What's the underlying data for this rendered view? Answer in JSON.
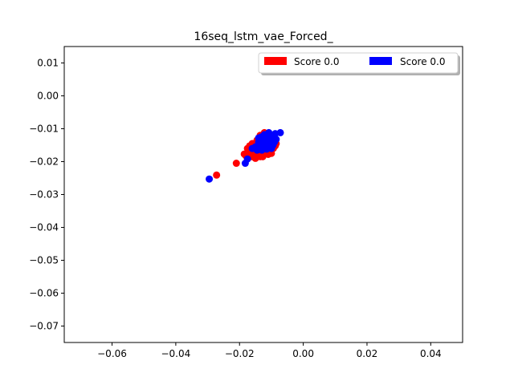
{
  "chart_data": {
    "type": "scatter",
    "title": "16seq_lstm_vae_Forced_",
    "xlabel": "",
    "ylabel": "",
    "xlim": [
      -0.075,
      0.05
    ],
    "ylim": [
      -0.075,
      0.015
    ],
    "xticks": [
      -0.06,
      -0.04,
      -0.02,
      0.0,
      0.02,
      0.04
    ],
    "xtick_labels": [
      "−0.06",
      "−0.04",
      "−0.02",
      "0.00",
      "0.02",
      "0.04"
    ],
    "yticks": [
      0.01,
      0.0,
      -0.01,
      -0.02,
      -0.03,
      -0.04,
      -0.05,
      -0.06,
      -0.07
    ],
    "ytick_labels": [
      "0.01",
      "0.00",
      "−0.01",
      "−0.02",
      "−0.03",
      "−0.04",
      "−0.05",
      "−0.06",
      "−0.07"
    ],
    "grid": false,
    "legend": {
      "placement": "top-right",
      "columns": 2
    },
    "series": [
      {
        "name": "Score 0.0",
        "color": "#ff0000",
        "points": [
          [
            -0.0272,
            -0.0241
          ],
          [
            -0.021,
            -0.0205
          ],
          [
            -0.0185,
            -0.0177
          ],
          [
            -0.018,
            -0.0182
          ],
          [
            -0.017,
            -0.0168
          ],
          [
            -0.0165,
            -0.0175
          ],
          [
            -0.016,
            -0.0185
          ],
          [
            -0.0155,
            -0.0178
          ],
          [
            -0.015,
            -0.017
          ],
          [
            -0.0148,
            -0.016
          ],
          [
            -0.0145,
            -0.0182
          ],
          [
            -0.0142,
            -0.015
          ],
          [
            -0.014,
            -0.0172
          ],
          [
            -0.0138,
            -0.014
          ],
          [
            -0.0135,
            -0.0185
          ],
          [
            -0.0132,
            -0.0165
          ],
          [
            -0.013,
            -0.0155
          ],
          [
            -0.0128,
            -0.0128
          ],
          [
            -0.0126,
            -0.0175
          ],
          [
            -0.0124,
            -0.0145
          ],
          [
            -0.0122,
            -0.0112
          ],
          [
            -0.012,
            -0.016
          ],
          [
            -0.0118,
            -0.0135
          ],
          [
            -0.0116,
            -0.017
          ],
          [
            -0.0114,
            -0.012
          ],
          [
            -0.0112,
            -0.015
          ],
          [
            -0.011,
            -0.0125
          ],
          [
            -0.0108,
            -0.0165
          ],
          [
            -0.0106,
            -0.014
          ],
          [
            -0.0104,
            -0.0118
          ],
          [
            -0.0102,
            -0.0155
          ],
          [
            -0.01,
            -0.0175
          ],
          [
            -0.0098,
            -0.013
          ],
          [
            -0.0096,
            -0.0148
          ],
          [
            -0.0094,
            -0.016
          ],
          [
            -0.0092,
            -0.0122
          ],
          [
            -0.009,
            -0.0138
          ],
          [
            -0.0088,
            -0.0152
          ],
          [
            -0.0085,
            -0.0145
          ],
          [
            -0.0155,
            -0.0158
          ],
          [
            -0.0168,
            -0.0152
          ],
          [
            -0.0175,
            -0.016
          ],
          [
            -0.0145,
            -0.0135
          ],
          [
            -0.0127,
            -0.0185
          ],
          [
            -0.011,
            -0.0178
          ],
          [
            -0.016,
            -0.0145
          ],
          [
            -0.0135,
            -0.012
          ],
          [
            -0.015,
            -0.019
          ]
        ]
      },
      {
        "name": "Score 0.0",
        "color": "#0000ff",
        "points": [
          [
            -0.0295,
            -0.0253
          ],
          [
            -0.0182,
            -0.0205
          ],
          [
            -0.0175,
            -0.0192
          ],
          [
            -0.016,
            -0.016
          ],
          [
            -0.015,
            -0.0155
          ],
          [
            -0.0145,
            -0.0165
          ],
          [
            -0.014,
            -0.014
          ],
          [
            -0.0135,
            -0.015
          ],
          [
            -0.0132,
            -0.0125
          ],
          [
            -0.0128,
            -0.0145
          ],
          [
            -0.0125,
            -0.0158
          ],
          [
            -0.012,
            -0.0135
          ],
          [
            -0.0118,
            -0.0148
          ],
          [
            -0.0115,
            -0.012
          ],
          [
            -0.0112,
            -0.014
          ],
          [
            -0.011,
            -0.0155
          ],
          [
            -0.0108,
            -0.0112
          ],
          [
            -0.0105,
            -0.013
          ],
          [
            -0.0103,
            -0.0145
          ],
          [
            -0.01,
            -0.0122
          ],
          [
            -0.0098,
            -0.0135
          ],
          [
            -0.0095,
            -0.015
          ],
          [
            -0.0093,
            -0.0128
          ],
          [
            -0.009,
            -0.014
          ],
          [
            -0.0088,
            -0.0115
          ],
          [
            -0.0085,
            -0.0132
          ],
          [
            -0.0072,
            -0.0112
          ],
          [
            -0.013,
            -0.0165
          ],
          [
            -0.0122,
            -0.0118
          ],
          [
            -0.01,
            -0.016
          ],
          [
            -0.014,
            -0.0128
          ],
          [
            -0.0115,
            -0.0162
          ]
        ]
      }
    ]
  }
}
